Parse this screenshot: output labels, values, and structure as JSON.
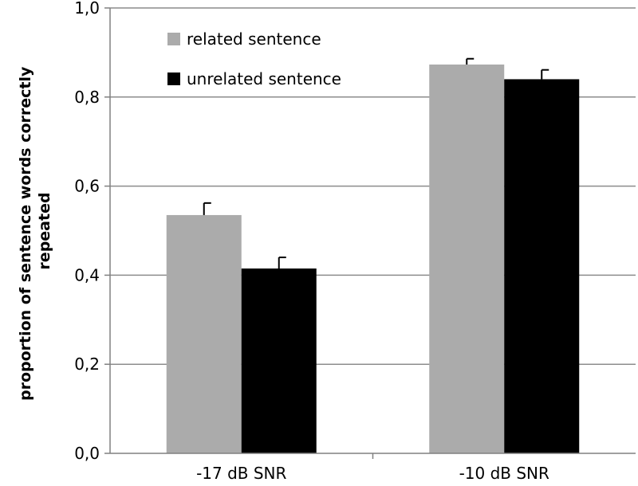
{
  "chart_data": {
    "type": "bar",
    "title": "",
    "xlabel": "",
    "ylabel_lines": [
      "proportion of sentence words correctly",
      "repeated"
    ],
    "categories": [
      "-17 dB SNR",
      "-10 dB SNR"
    ],
    "series": [
      {
        "name": "related sentence",
        "color": "#ababab",
        "values": [
          0.535,
          0.873
        ],
        "errors": [
          0.027,
          0.013
        ]
      },
      {
        "name": "unrelated sentence",
        "color": "#000000",
        "values": [
          0.415,
          0.84
        ],
        "errors": [
          0.025,
          0.021
        ]
      }
    ],
    "ylim": [
      0.0,
      1.0
    ],
    "yticks": [
      0.0,
      0.2,
      0.4,
      0.6,
      0.8,
      1.0
    ],
    "ytick_labels": [
      "0,0",
      "0,2",
      "0,4",
      "0,6",
      "0,8",
      "1,0"
    ],
    "grid": true,
    "legend": "top-left"
  }
}
